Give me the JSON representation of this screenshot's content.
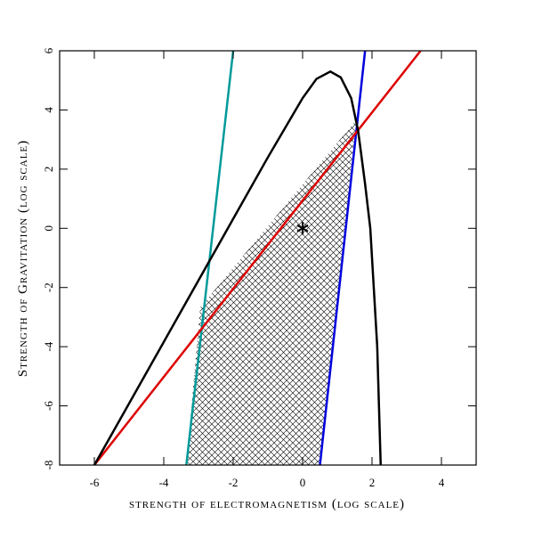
{
  "chart_data": {
    "type": "line",
    "xlabel": "strength of electromagnetism (log scale)",
    "ylabel": "Strength of Gravitation (log scale)",
    "xlim": [
      -7,
      5
    ],
    "ylim": [
      -8,
      6
    ],
    "xticks": [
      -6,
      -4,
      -2,
      0,
      2,
      4
    ],
    "yticks": [
      -8,
      -6,
      -4,
      -2,
      0,
      2,
      4,
      6
    ],
    "series": [
      {
        "color": "#009a9a",
        "x": [
          -3.35,
          -2.0
        ],
        "values": [
          -8,
          6
        ]
      },
      {
        "color": "#0000dd",
        "x": [
          0.5,
          1.8
        ],
        "values": [
          -8,
          6
        ]
      },
      {
        "color": "#dd0000",
        "x": [
          -6,
          3.4
        ],
        "values": [
          -8,
          6
        ]
      },
      {
        "color": "#000000",
        "x": [
          -6,
          -4,
          -2,
          -1,
          -0.5,
          0,
          0.4,
          0.8,
          1.1,
          1.4,
          1.6,
          1.8,
          1.95,
          2.05,
          2.15,
          2.2,
          2.25
        ],
        "values": [
          -8,
          -3.84,
          0.32,
          2.4,
          3.4,
          4.4,
          5.05,
          5.3,
          5.1,
          4.4,
          3.3,
          1.5,
          0,
          -2,
          -4,
          -6,
          -8
        ]
      }
    ],
    "shaded_region": {
      "x": [
        -3.35,
        -2.95,
        1.54,
        0.5
      ],
      "y": [
        -8,
        -2.67,
        3.65,
        -8
      ]
    },
    "marker": {
      "x": 0,
      "y": 0
    }
  }
}
